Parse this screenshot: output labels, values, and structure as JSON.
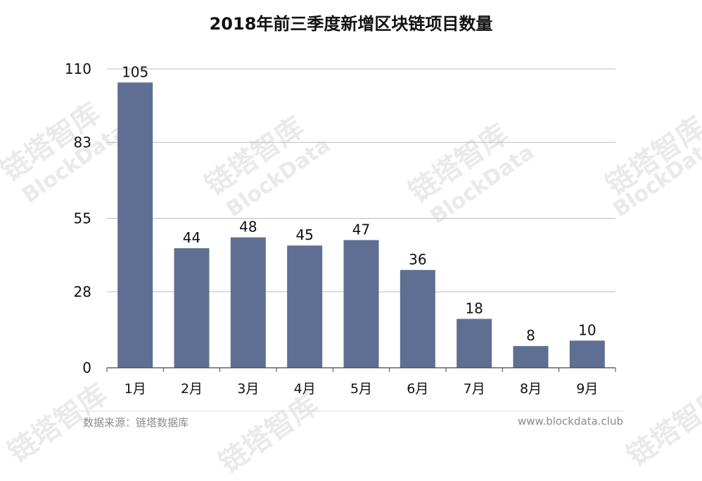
{
  "title": "2018年前三季度新增区块链项目数量",
  "footer": {
    "source": "数据来源：链塔数据库",
    "url": "www.blockdata.club"
  },
  "watermark": {
    "brand": "链塔智库",
    "brand_en": "BlockData"
  },
  "colors": {
    "bar": "#5f6f93",
    "grid": "#bdbdbd",
    "axis": "#444444"
  },
  "chart_data": {
    "type": "bar",
    "title": "2018年前三季度新增区块链项目数量",
    "categories": [
      "1月",
      "2月",
      "3月",
      "4月",
      "5月",
      "6月",
      "7月",
      "8月",
      "9月"
    ],
    "values": [
      105,
      44,
      48,
      45,
      47,
      36,
      18,
      8,
      10
    ],
    "yticks": [
      0,
      28,
      55,
      83,
      110
    ],
    "ylim": [
      0,
      110
    ],
    "grid": true,
    "legend": false
  }
}
